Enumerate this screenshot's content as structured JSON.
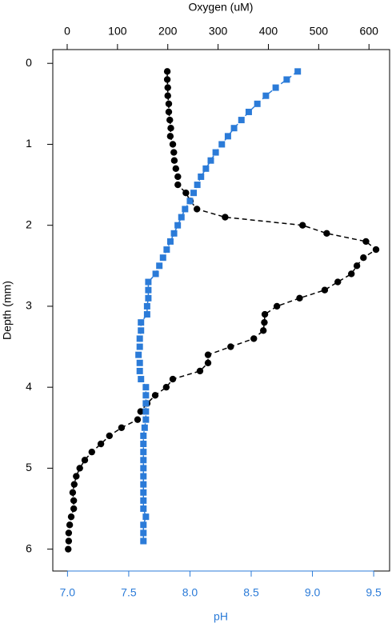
{
  "chart_data": {
    "type": "profile",
    "x_label": "pH",
    "x2_label": "Oxygen (uM)",
    "y_label": "Depth (mm)",
    "xlim": [
      6.88,
      9.63
    ],
    "xticks": [
      {
        "value": 7,
        "label": "7.0"
      },
      7.5,
      {
        "value": 8,
        "label": "8.0"
      },
      8.5,
      {
        "value": 9,
        "label": "9.0"
      },
      9.5
    ],
    "x2lim": [
      -28.6,
      641
    ],
    "x2ticks": [
      0,
      100,
      200,
      300,
      400,
      500,
      600
    ],
    "ylim": [
      -0.17,
      6.27
    ],
    "y_inverted": true,
    "yticks": [
      0,
      1,
      2,
      3,
      4,
      5,
      6
    ],
    "x_axis_color": "#2b7bd8",
    "series": [
      {
        "color": "#000000",
        "marker": "circle",
        "axis": "x2",
        "depth": [
          0.1,
          0.2,
          0.3,
          0.4,
          0.5,
          0.6,
          0.7,
          0.8,
          0.9,
          1.0,
          1.1,
          1.2,
          1.3,
          1.4,
          1.5,
          1.6,
          1.7,
          1.8,
          1.9,
          2.0,
          2.1,
          2.2,
          2.3,
          2.4,
          2.5,
          2.6,
          2.7,
          2.8,
          2.9,
          3.0,
          3.1,
          3.2,
          3.3,
          3.4,
          3.5,
          3.6,
          3.7,
          3.8,
          3.9,
          4.0,
          4.1,
          4.2,
          4.3,
          4.4,
          4.5,
          4.6,
          4.7,
          4.8,
          4.9,
          5.0,
          5.1,
          5.2,
          5.3,
          5.4,
          5.5,
          5.6,
          5.7,
          5.8,
          5.9,
          6.0
        ],
        "values": [
          199,
          199,
          200,
          200,
          202,
          202,
          204,
          206,
          205,
          210,
          212,
          213,
          216,
          220,
          220,
          236,
          245,
          258,
          314,
          468,
          516,
          594,
          614,
          589,
          576,
          565,
          538,
          512,
          462,
          417,
          393,
          392,
          390,
          371,
          325,
          280,
          280,
          264,
          210,
          197,
          175,
          159,
          146,
          140,
          108,
          84,
          67,
          49,
          35,
          25,
          18,
          14,
          11,
          13,
          13,
          8,
          5,
          3,
          3,
          2
        ]
      },
      {
        "color": "#2b7bd8",
        "marker": "square",
        "axis": "x",
        "depth": [
          0.1,
          0.2,
          0.3,
          0.4,
          0.5,
          0.6,
          0.7,
          0.8,
          0.9,
          1.0,
          1.1,
          1.2,
          1.3,
          1.4,
          1.5,
          1.6,
          1.7,
          1.8,
          1.9,
          2.0,
          2.1,
          2.2,
          2.3,
          2.4,
          2.5,
          2.6,
          2.7,
          2.8,
          2.9,
          3.0,
          3.1,
          3.2,
          3.3,
          3.4,
          3.5,
          3.6,
          3.7,
          3.8,
          3.9,
          4.0,
          4.1,
          4.2,
          4.3,
          4.4,
          4.5,
          4.6,
          4.7,
          4.8,
          4.9,
          5.0,
          5.1,
          5.2,
          5.3,
          5.4,
          5.5,
          5.6,
          5.7,
          5.8,
          5.9
        ],
        "values": [
          8.88,
          8.79,
          8.7,
          8.62,
          8.55,
          8.48,
          8.42,
          8.36,
          8.31,
          8.26,
          8.21,
          8.17,
          8.13,
          8.09,
          8.06,
          8.03,
          8.0,
          7.96,
          7.93,
          7.9,
          7.87,
          7.84,
          7.81,
          7.78,
          7.75,
          7.72,
          7.66,
          7.66,
          7.66,
          7.65,
          7.65,
          7.6,
          7.6,
          7.59,
          7.59,
          7.58,
          7.59,
          7.59,
          7.6,
          7.64,
          7.64,
          7.64,
          7.64,
          7.64,
          7.63,
          7.62,
          7.62,
          7.62,
          7.62,
          7.62,
          7.62,
          7.62,
          7.62,
          7.62,
          7.62,
          7.64,
          7.62,
          7.62,
          7.62
        ]
      }
    ]
  }
}
